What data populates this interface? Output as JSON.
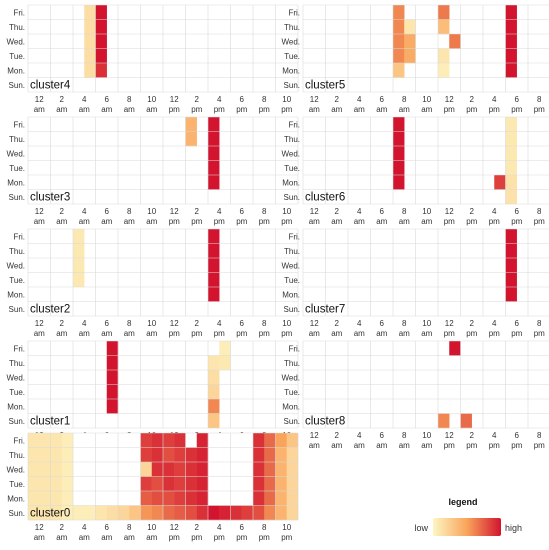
{
  "chart_data": {
    "type": "heatmap",
    "day_labels": [
      "Fri.",
      "Thu.",
      "Wed.",
      "Tue.",
      "Mon.",
      "Sun."
    ],
    "hour_tick_top": [
      "12",
      "2",
      "4",
      "6",
      "8",
      "10",
      "12",
      "2",
      "4",
      "6",
      "8",
      "10"
    ],
    "hour_tick_bottom": [
      "am",
      "am",
      "am",
      "am",
      "am",
      "am",
      "pm",
      "pm",
      "pm",
      "pm",
      "pm",
      "pm"
    ],
    "hours_range": [
      0,
      23
    ],
    "color_scale": {
      "low": "#fdf6c3",
      "mid": "#f9a45a",
      "high": "#d2142f",
      "empty": "#ffffff"
    },
    "panels": [
      {
        "name": "cluster4",
        "cells": [
          {
            "day": "Fri.",
            "hour": 5,
            "value": 0.15
          },
          {
            "day": "Fri.",
            "hour": 6,
            "value": 1.0
          },
          {
            "day": "Thu.",
            "hour": 5,
            "value": 0.15
          },
          {
            "day": "Thu.",
            "hour": 6,
            "value": 1.0
          },
          {
            "day": "Wed.",
            "hour": 5,
            "value": 0.15
          },
          {
            "day": "Wed.",
            "hour": 6,
            "value": 1.0
          },
          {
            "day": "Tue.",
            "hour": 5,
            "value": 0.15
          },
          {
            "day": "Tue.",
            "hour": 6,
            "value": 1.0
          },
          {
            "day": "Mon.",
            "hour": 5,
            "value": 0.15
          },
          {
            "day": "Mon.",
            "hour": 6,
            "value": 0.9
          }
        ]
      },
      {
        "name": "cluster5",
        "cells": [
          {
            "day": "Fri.",
            "hour": 8,
            "value": 0.6
          },
          {
            "day": "Fri.",
            "hour": 12,
            "value": 0.65
          },
          {
            "day": "Fri.",
            "hour": 18,
            "value": 1.0
          },
          {
            "day": "Thu.",
            "hour": 8,
            "value": 0.6
          },
          {
            "day": "Thu.",
            "hour": 9,
            "value": 0.1
          },
          {
            "day": "Thu.",
            "hour": 12,
            "value": 0.35
          },
          {
            "day": "Thu.",
            "hour": 18,
            "value": 1.0
          },
          {
            "day": "Wed.",
            "hour": 8,
            "value": 0.6
          },
          {
            "day": "Wed.",
            "hour": 9,
            "value": 0.45
          },
          {
            "day": "Wed.",
            "hour": 13,
            "value": 0.65
          },
          {
            "day": "Wed.",
            "hour": 18,
            "value": 1.0
          },
          {
            "day": "Tue.",
            "hour": 8,
            "value": 0.6
          },
          {
            "day": "Tue.",
            "hour": 9,
            "value": 0.45
          },
          {
            "day": "Tue.",
            "hour": 12,
            "value": 0.1
          },
          {
            "day": "Tue.",
            "hour": 18,
            "value": 1.0
          },
          {
            "day": "Mon.",
            "hour": 8,
            "value": 0.3
          },
          {
            "day": "Mon.",
            "hour": 12,
            "value": 0.05
          },
          {
            "day": "Mon.",
            "hour": 18,
            "value": 1.0
          }
        ]
      },
      {
        "name": "cluster3",
        "cells": [
          {
            "day": "Fri.",
            "hour": 14,
            "value": 0.4
          },
          {
            "day": "Fri.",
            "hour": 16,
            "value": 1.0
          },
          {
            "day": "Thu.",
            "hour": 14,
            "value": 0.4
          },
          {
            "day": "Thu.",
            "hour": 16,
            "value": 1.0
          },
          {
            "day": "Wed.",
            "hour": 16,
            "value": 1.0
          },
          {
            "day": "Tue.",
            "hour": 16,
            "value": 1.0
          },
          {
            "day": "Mon.",
            "hour": 16,
            "value": 1.0
          }
        ]
      },
      {
        "name": "cluster6",
        "cells": [
          {
            "day": "Fri.",
            "hour": 8,
            "value": 1.0
          },
          {
            "day": "Fri.",
            "hour": 18,
            "value": 0.08
          },
          {
            "day": "Thu.",
            "hour": 8,
            "value": 1.0
          },
          {
            "day": "Thu.",
            "hour": 18,
            "value": 0.08
          },
          {
            "day": "Wed.",
            "hour": 8,
            "value": 1.0
          },
          {
            "day": "Wed.",
            "hour": 18,
            "value": 0.08
          },
          {
            "day": "Tue.",
            "hour": 8,
            "value": 1.0
          },
          {
            "day": "Tue.",
            "hour": 18,
            "value": 0.08
          },
          {
            "day": "Mon.",
            "hour": 8,
            "value": 1.0
          },
          {
            "day": "Mon.",
            "hour": 17,
            "value": 0.85
          },
          {
            "day": "Mon.",
            "hour": 18,
            "value": 0.12
          },
          {
            "day": "Sun.",
            "hour": 18,
            "value": 0.12
          }
        ]
      },
      {
        "name": "cluster2",
        "cells": [
          {
            "day": "Fri.",
            "hour": 4,
            "value": 0.08
          },
          {
            "day": "Fri.",
            "hour": 16,
            "value": 1.0
          },
          {
            "day": "Thu.",
            "hour": 4,
            "value": 0.08
          },
          {
            "day": "Thu.",
            "hour": 16,
            "value": 1.0
          },
          {
            "day": "Wed.",
            "hour": 4,
            "value": 0.08
          },
          {
            "day": "Wed.",
            "hour": 16,
            "value": 1.0
          },
          {
            "day": "Tue.",
            "hour": 4,
            "value": 0.08
          },
          {
            "day": "Tue.",
            "hour": 16,
            "value": 1.0
          },
          {
            "day": "Mon.",
            "hour": 16,
            "value": 1.0
          }
        ]
      },
      {
        "name": "cluster7",
        "cells": [
          {
            "day": "Fri.",
            "hour": 18,
            "value": 1.0
          },
          {
            "day": "Thu.",
            "hour": 18,
            "value": 1.0
          },
          {
            "day": "Wed.",
            "hour": 18,
            "value": 1.0
          },
          {
            "day": "Tue.",
            "hour": 18,
            "value": 1.0
          },
          {
            "day": "Mon.",
            "hour": 18,
            "value": 1.0
          }
        ]
      },
      {
        "name": "cluster1",
        "cells": [
          {
            "day": "Fri.",
            "hour": 7,
            "value": 1.0
          },
          {
            "day": "Fri.",
            "hour": 17,
            "value": 0.05
          },
          {
            "day": "Thu.",
            "hour": 7,
            "value": 1.0
          },
          {
            "day": "Thu.",
            "hour": 16,
            "value": 0.1
          },
          {
            "day": "Thu.",
            "hour": 17,
            "value": 0.08
          },
          {
            "day": "Wed.",
            "hour": 7,
            "value": 1.0
          },
          {
            "day": "Wed.",
            "hour": 16,
            "value": 0.15
          },
          {
            "day": "Tue.",
            "hour": 7,
            "value": 1.0
          },
          {
            "day": "Tue.",
            "hour": 16,
            "value": 0.2
          },
          {
            "day": "Mon.",
            "hour": 7,
            "value": 1.0
          },
          {
            "day": "Mon.",
            "hour": 16,
            "value": 0.6
          },
          {
            "day": "Sun.",
            "hour": 16,
            "value": 0.3
          }
        ]
      },
      {
        "name": "cluster8",
        "cells": [
          {
            "day": "Fri.",
            "hour": 13,
            "value": 1.0
          },
          {
            "day": "Sun.",
            "hour": 12,
            "value": 0.6
          },
          {
            "day": "Sun.",
            "hour": 14,
            "value": 0.7
          }
        ]
      },
      {
        "name": "cluster0",
        "rows": {
          "Fri.": [
            0.1,
            0.1,
            0.1,
            0.05,
            0,
            0,
            0,
            0,
            0,
            0,
            0.85,
            0.9,
            0.85,
            0.9,
            0,
            0.95,
            0,
            0,
            0,
            0,
            0.9,
            0.7,
            0.5,
            0.3
          ],
          "Thu.": [
            0.1,
            0.1,
            0.1,
            0.05,
            0,
            0,
            0,
            0,
            0,
            0,
            0.85,
            0.9,
            0.8,
            0.85,
            0.9,
            0.95,
            0,
            0,
            0,
            0,
            0.9,
            0.7,
            0.4,
            0.2
          ],
          "Wed.": [
            0.1,
            0.1,
            0.1,
            0.05,
            0,
            0,
            0,
            0,
            0,
            0,
            0.2,
            0.9,
            0.9,
            0.85,
            0.9,
            0.95,
            0,
            0,
            0,
            0,
            0.9,
            0.7,
            0.4,
            0.2
          ],
          "Tue.": [
            0.1,
            0.1,
            0.1,
            0.05,
            0,
            0,
            0,
            0,
            0,
            0,
            0.85,
            0.8,
            0.9,
            0.85,
            0.9,
            0.95,
            0,
            0,
            0,
            0,
            0.9,
            0.7,
            0.4,
            0.2
          ],
          "Mon.": [
            0.1,
            0.1,
            0.1,
            0.05,
            0,
            0,
            0,
            0,
            0,
            0,
            0.75,
            0.8,
            0.8,
            0.85,
            0.9,
            0.95,
            0,
            0,
            0,
            0,
            0.9,
            0.7,
            0.4,
            0.2
          ],
          "Sun.": [
            0.1,
            0.1,
            0.1,
            0.05,
            0.05,
            0.05,
            0.1,
            0.15,
            0.2,
            0.3,
            0.55,
            0.6,
            0.7,
            0.75,
            0.8,
            0.9,
            1.0,
            0.95,
            0.9,
            0.85,
            0.8,
            0.6,
            0.4,
            0.2
          ]
        }
      }
    ],
    "legend": {
      "title": "legend",
      "low_label": "low",
      "high_label": "high"
    }
  }
}
